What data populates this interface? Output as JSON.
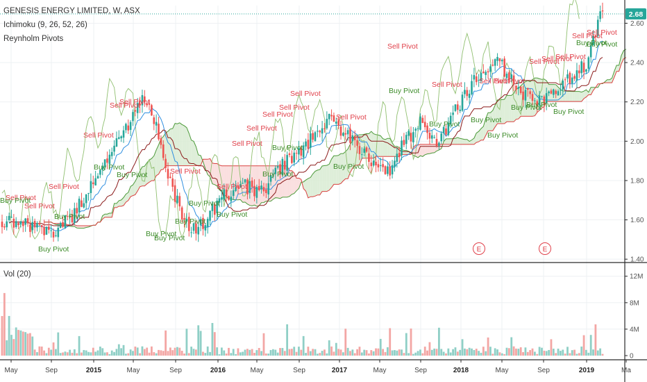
{
  "header": {
    "symbol_title": "GENESIS ENERGY LIMITED, W, ASX",
    "ichimoku_label": "Ichimoku (9, 26, 52, 26)",
    "reynholm_label": "Reynholm Pivots",
    "volume_label": "Vol (20)",
    "last_price": "2.68"
  },
  "colors": {
    "up": "#26a69a",
    "down": "#ef5350",
    "last_price_bg": "#26a69a",
    "cloud_bull": "#d8ebd2",
    "cloud_bear": "#f9d9d9",
    "senkou_a": "#4c9a3a",
    "senkou_b": "#d9403f",
    "chikou": "#8fbf6f",
    "tenkan": "#2f8fe0",
    "kijun": "#8b1a1a",
    "earnings": "#e0404a"
  },
  "chart_data": {
    "type": "candlestick",
    "title": "GENESIS ENERGY LIMITED, W, ASX",
    "price_axis": {
      "ticks": [
        "2.60",
        "2.40",
        "2.20",
        "2.00",
        "1.80",
        "1.60",
        "1.40"
      ],
      "ylim": [
        1.39,
        2.69
      ]
    },
    "volume_axis": {
      "label": "Vol (20)",
      "ticks": [
        "12M",
        "8M",
        "4M",
        "0"
      ],
      "ylim": [
        0,
        12600000
      ]
    },
    "time_axis": [
      "May",
      "Sep",
      "2015",
      "May",
      "Sep",
      "2016",
      "May",
      "Sep",
      "2017",
      "May",
      "Sep",
      "2018",
      "May",
      "Sep",
      "2019",
      "Ma"
    ],
    "year_labels": [
      "2015",
      "2016",
      "2017",
      "2018",
      "2019"
    ],
    "last_price": 2.68,
    "earnings_markers": [
      "E",
      "E"
    ],
    "pivot_labels": {
      "sell": [
        "Sell Pivot",
        "Sell Pivot",
        "Sell Pivot",
        "Sell Pivot",
        "Sell Pivot",
        "Sell Pivot",
        "Sell Pivot",
        "Sell Pivot",
        "Sell Pivot",
        "Sell Pivot",
        "Sell Pivot",
        "Sell Pivot",
        "Sell Pivot",
        "Sell Pivot",
        "Sell Pivot",
        "Sell Pivot",
        "Sell Pivot",
        "Sell Pivot",
        "Sell Pivot",
        "Sell Pivot",
        "Sell Pivot",
        "Sell Pivot",
        "Sell Pivot"
      ],
      "buy": [
        "Buy Pivot",
        "Buy Pivot",
        "Buy Pivot",
        "Buy Pivot",
        "Buy Pivot",
        "Buy Pivot",
        "Buy Pivot",
        "Buy Pivot",
        "Buy Pivot",
        "Buy Pivot",
        "Buy Pivot",
        "Buy Pivot",
        "Buy Pivot",
        "Buy Pivot",
        "Buy Pivot",
        "Buy Pivot",
        "Buy Pivot",
        "Buy Pivot",
        "Buy Pivot",
        "Buy Pivot",
        "Buy Pivot",
        "Buy Pivot"
      ]
    }
  }
}
